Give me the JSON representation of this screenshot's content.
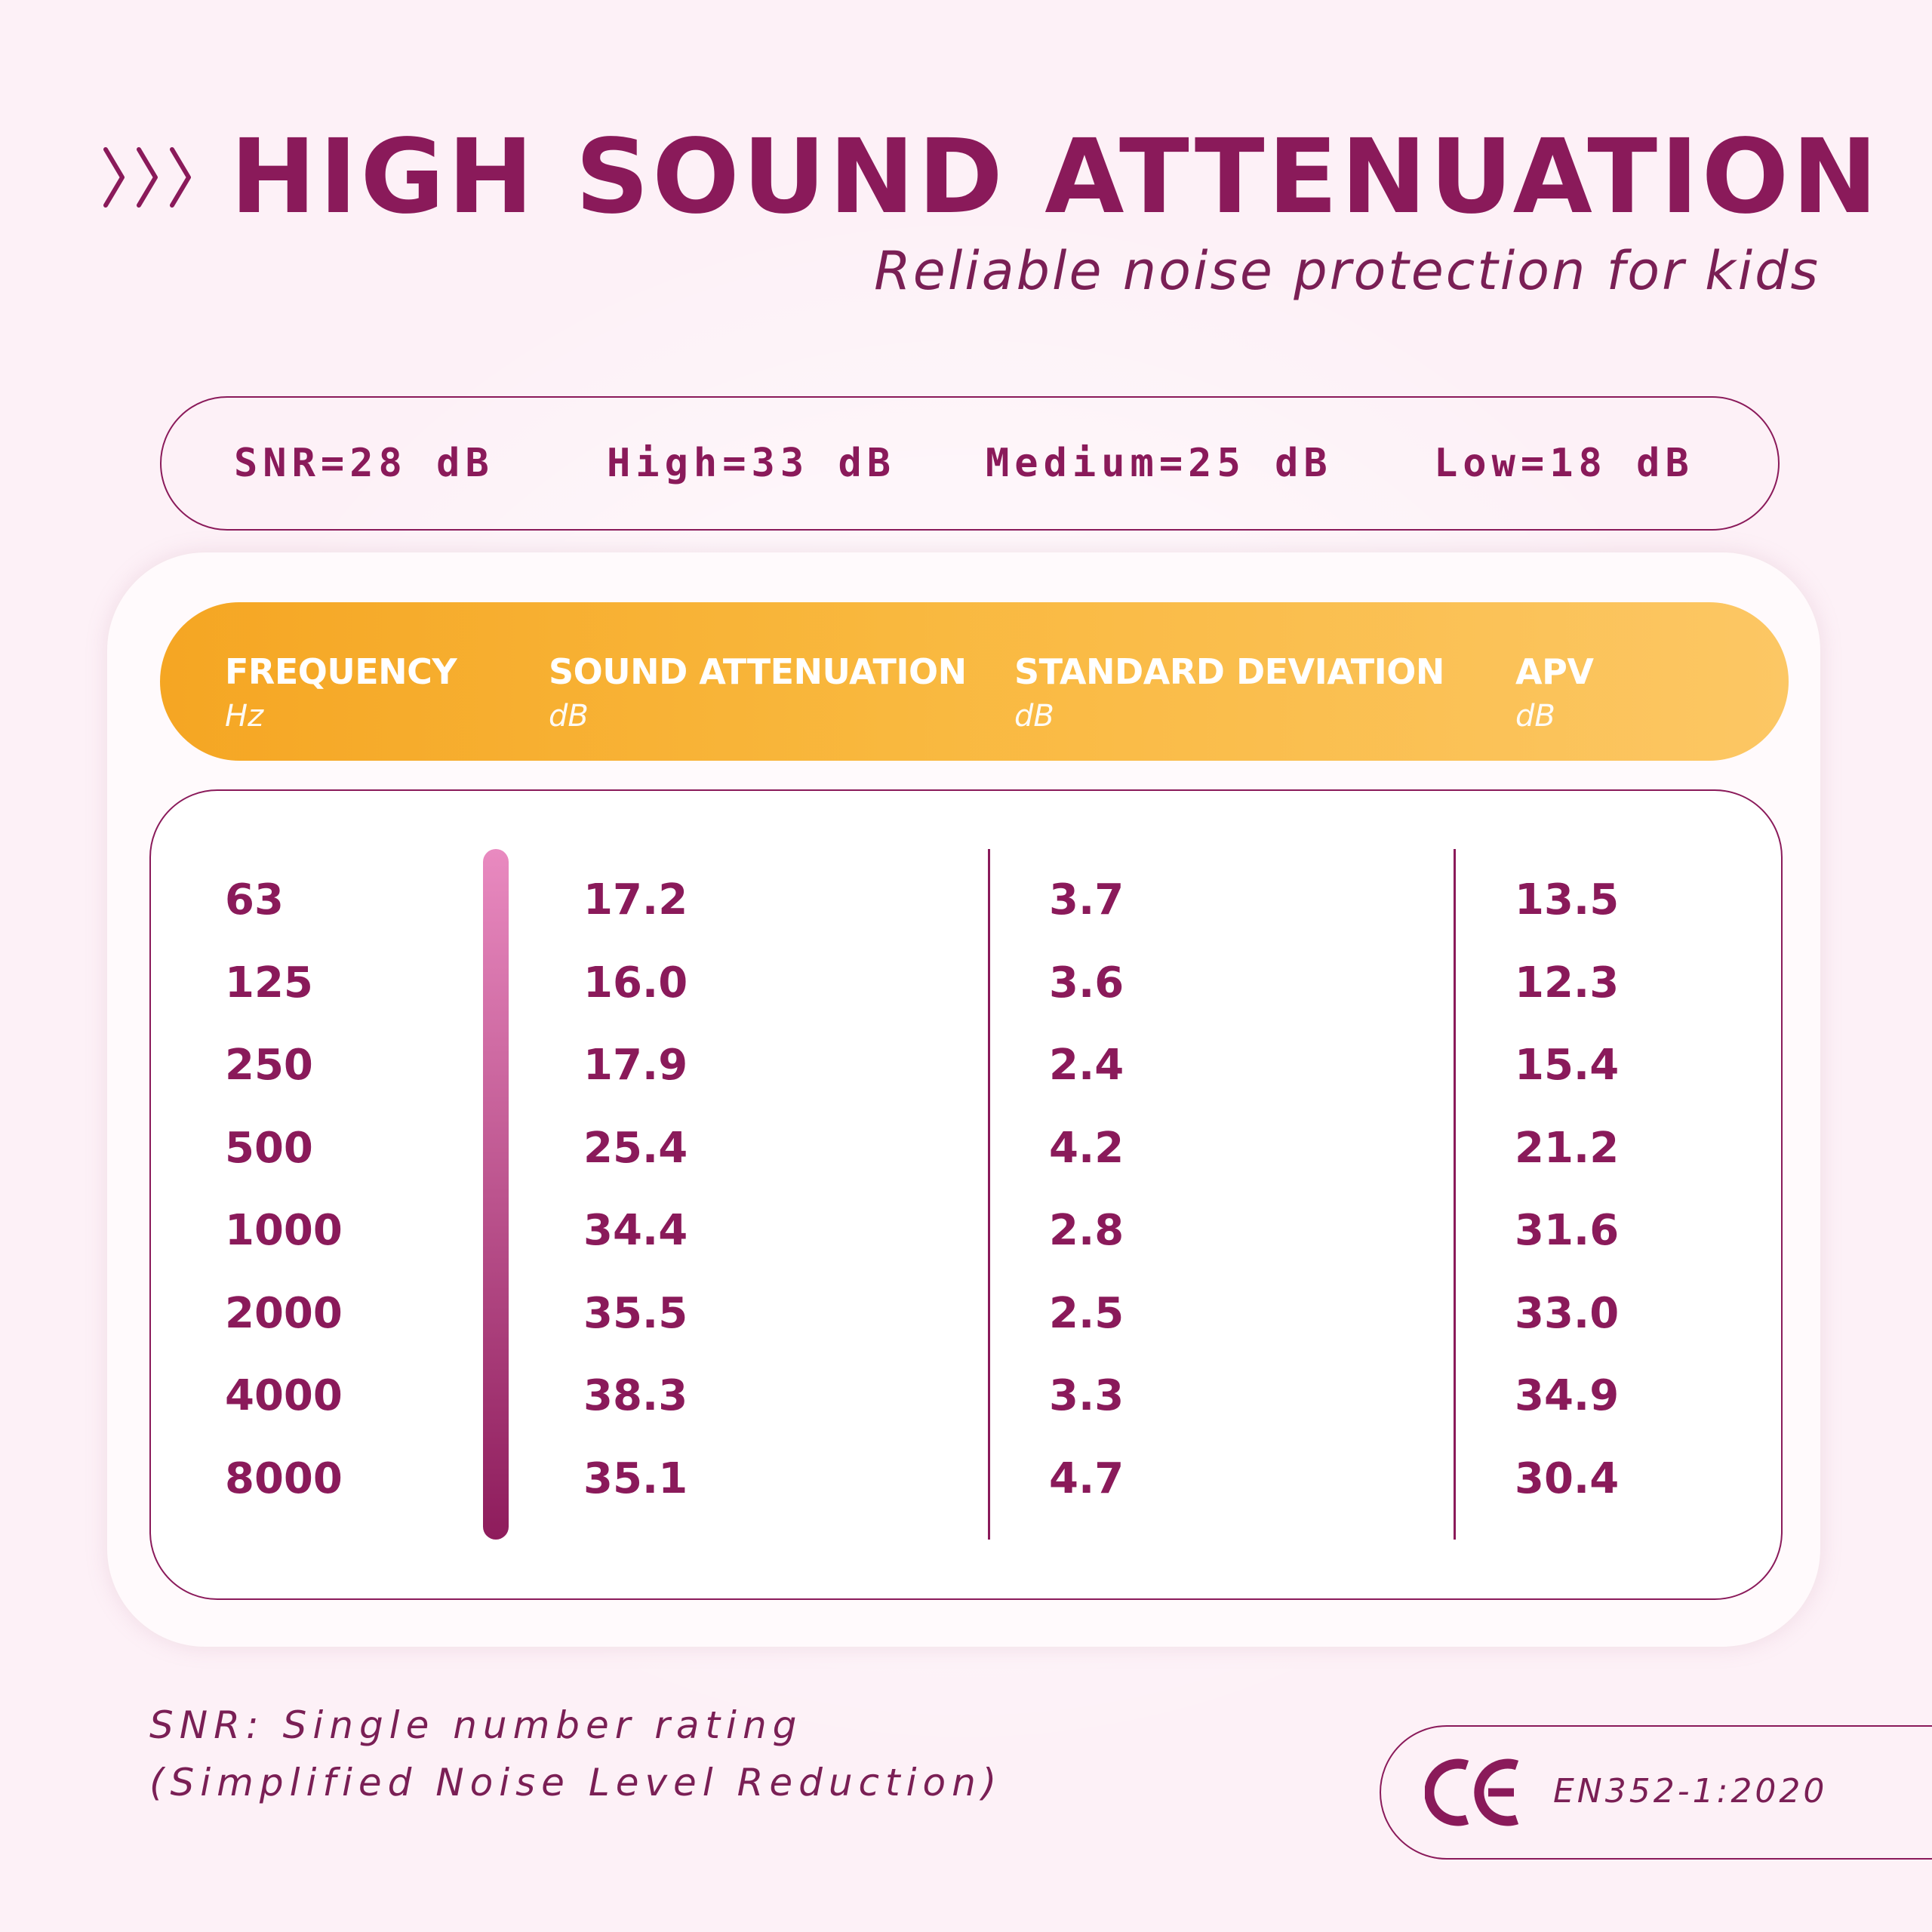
{
  "header": {
    "title": "HIGH SOUND ATTENUATION",
    "subtitle": "Reliable noise protection for kids",
    "decor_icon": "triple-chevron-right"
  },
  "ratings": [
    {
      "label": "SNR=28 dB"
    },
    {
      "label": "High=33 dB"
    },
    {
      "label": "Medium=25 dB"
    },
    {
      "label": "Low=18 dB"
    }
  ],
  "table": {
    "columns": [
      {
        "label": "FREQUENCY",
        "unit": "Hz"
      },
      {
        "label": "SOUND ATTENUATION",
        "unit": "dB"
      },
      {
        "label": "STANDARD DEVIATION",
        "unit": "dB"
      },
      {
        "label": "APV",
        "unit": "dB"
      }
    ],
    "rows": [
      [
        "63",
        "17.2",
        "3.7",
        "13.5"
      ],
      [
        "125",
        "16.0",
        "3.6",
        "12.3"
      ],
      [
        "250",
        "17.9",
        "2.4",
        "15.4"
      ],
      [
        "500",
        "25.4",
        "4.2",
        "21.2"
      ],
      [
        "1000",
        "34.4",
        "2.8",
        "31.6"
      ],
      [
        "2000",
        "35.5",
        "2.5",
        "33.0"
      ],
      [
        "4000",
        "38.3",
        "3.3",
        "34.9"
      ],
      [
        "8000",
        "35.1",
        "4.7",
        "30.4"
      ]
    ]
  },
  "footnote": {
    "line1": "SNR: Single number rating",
    "line2": "(Simplified Noise Level Reduction)"
  },
  "certification": {
    "mark_icon": "ce-mark",
    "standard": "EN352-1:2020"
  },
  "colors": {
    "primary": "#8a1a5a",
    "header_gradient_start": "#f5a623",
    "header_gradient_end": "#fcc764",
    "background": "#fdf1f7",
    "bar_gradient_top": "#e98ac0",
    "bar_gradient_bottom": "#8e1c5c"
  }
}
